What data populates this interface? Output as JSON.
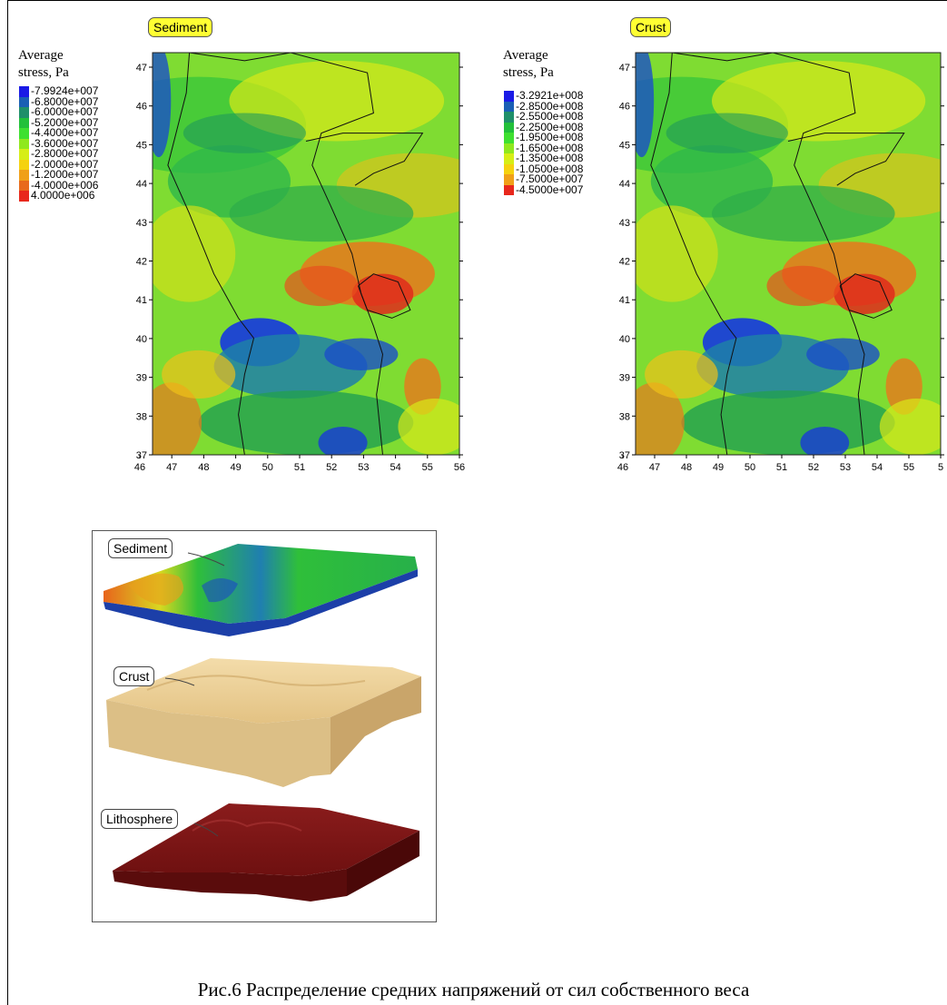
{
  "maps": [
    {
      "layer_label": "Sediment",
      "legend_title_line1": "Average",
      "legend_title_line2": "stress, Pa",
      "legend": [
        {
          "label": "-7.9924e+007",
          "color": "#1a1ae6"
        },
        {
          "label": "-6.8000e+007",
          "color": "#1a5fb4"
        },
        {
          "label": "-6.0000e+007",
          "color": "#1f8f6a"
        },
        {
          "label": "-5.2000e+007",
          "color": "#22c03a"
        },
        {
          "label": "-4.4000e+007",
          "color": "#3ee030"
        },
        {
          "label": "-3.6000e+007",
          "color": "#8fe81e"
        },
        {
          "label": "-2.8000e+007",
          "color": "#d6ee16"
        },
        {
          "label": "-2.0000e+007",
          "color": "#f5d20f"
        },
        {
          "label": "-1.2000e+007",
          "color": "#f0a018"
        },
        {
          "label": "-4.0000e+006",
          "color": "#e86a1c"
        },
        {
          "label": "4.0000e+006",
          "color": "#e8281c"
        }
      ],
      "y_ticks": [
        "47",
        "46",
        "45",
        "44",
        "43",
        "42",
        "41",
        "40",
        "39",
        "38",
        "37"
      ],
      "x_ticks": [
        "46",
        "47",
        "48",
        "49",
        "50",
        "51",
        "52",
        "53",
        "54",
        "55",
        "56"
      ]
    },
    {
      "layer_label": "Crust",
      "legend_title_line1": "Average",
      "legend_title_line2": "stress, Pa",
      "legend": [
        {
          "label": "-3.2921e+008",
          "color": "#1a1ae6"
        },
        {
          "label": "-2.8500e+008",
          "color": "#1a5fb4"
        },
        {
          "label": "-2.5500e+008",
          "color": "#1f8f6a"
        },
        {
          "label": "-2.2500e+008",
          "color": "#22c03a"
        },
        {
          "label": "-1.9500e+008",
          "color": "#3ee030"
        },
        {
          "label": "-1.6500e+008",
          "color": "#8fe81e"
        },
        {
          "label": "-1.3500e+008",
          "color": "#d6ee16"
        },
        {
          "label": "-1.0500e+008",
          "color": "#f5d20f"
        },
        {
          "label": "-7.5000e+007",
          "color": "#f0a018"
        },
        {
          "label": "-4.5000e+007",
          "color": "#e8281c"
        }
      ],
      "y_ticks": [
        "47",
        "46",
        "45",
        "44",
        "43",
        "42",
        "41",
        "40",
        "39",
        "38",
        "37"
      ],
      "x_ticks": [
        "46",
        "47",
        "48",
        "49",
        "50",
        "51",
        "52",
        "53",
        "54",
        "55",
        "5"
      ]
    }
  ],
  "layers": {
    "sediment": "Sediment",
    "crust": "Crust",
    "lithosphere": "Lithosphere",
    "colors": {
      "sediment_top": "#2fbf3a",
      "crust": "#e8c98a",
      "lithosphere": "#7a1414"
    }
  },
  "caption": "Рис.6 Распределение средних напряжений от сил собственного веса"
}
